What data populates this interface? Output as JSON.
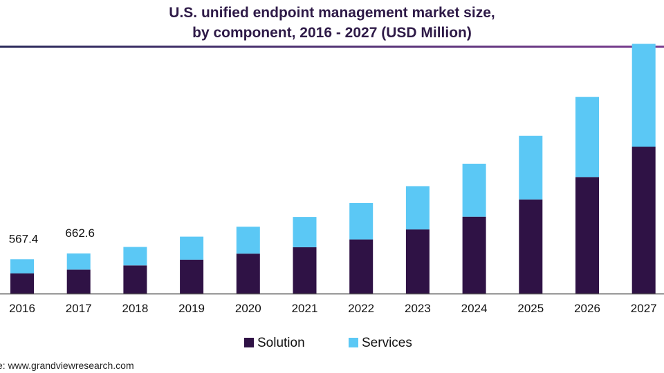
{
  "title": {
    "line1": "U.S. unified endpoint management market size,",
    "line2": "by component, 2016 - 2027 (USD Million)"
  },
  "source": "e: www.grandviewresearch.com",
  "colors": {
    "solution": "#2f1245",
    "services": "#5bc8f5",
    "axis": "#555555",
    "text": "#111111"
  },
  "chart_data": {
    "type": "bar",
    "stacked": true,
    "categories": [
      "2016",
      "2017",
      "2018",
      "2019",
      "2020",
      "2021",
      "2022",
      "2023",
      "2024",
      "2025",
      "2026",
      "2027"
    ],
    "series": [
      {
        "name": "Solution",
        "values": [
          335,
          395,
          465,
          560,
          660,
          765,
          895,
          1060,
          1270,
          1555,
          1925,
          2425
        ]
      },
      {
        "name": "Services",
        "values": [
          232.4,
          267.6,
          305,
          380,
          445,
          500,
          600,
          715,
          875,
          1050,
          1325,
          1700
        ]
      }
    ],
    "data_labels": [
      {
        "category": "2016",
        "text": "567.4"
      },
      {
        "category": "2017",
        "text": "662.6"
      }
    ],
    "ylim": [
      0,
      4850
    ],
    "grid": false,
    "legend": "bottom-center",
    "xlabel": "",
    "ylabel": ""
  }
}
